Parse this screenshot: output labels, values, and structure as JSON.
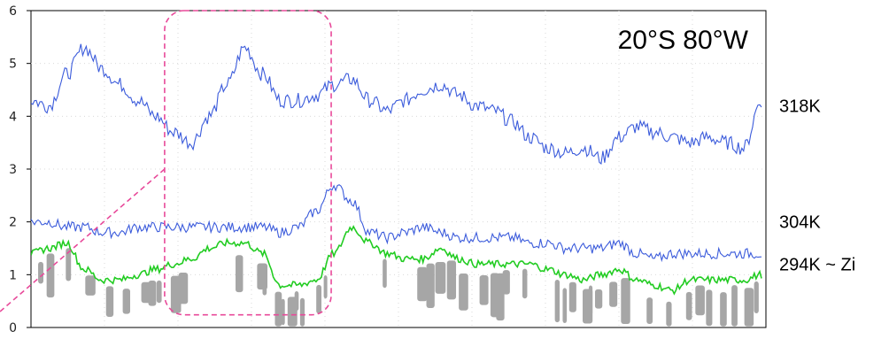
{
  "chart_data": {
    "type": "line",
    "title": "",
    "xlabel": "",
    "ylabel": "",
    "ylim": [
      0,
      6
    ],
    "yticks": [
      0,
      1,
      2,
      3,
      4,
      5,
      6
    ],
    "x": [
      0,
      20,
      40,
      60,
      80,
      100,
      120,
      140,
      160,
      180,
      200,
      220,
      240,
      260,
      280,
      300,
      320,
      340,
      360,
      380,
      400,
      420,
      440,
      460,
      480,
      500,
      520,
      540,
      560,
      580,
      600,
      620,
      640,
      660,
      680,
      700,
      720,
      740,
      760,
      780,
      800,
      820
    ],
    "xlim": [
      0,
      825
    ],
    "grid": true,
    "location_label": "20°S 80°W",
    "colors": {
      "isentrope": "#3b5bdb",
      "inversion": "#22cc22",
      "cloud": "#a6a6a6",
      "highlight": "#e84a9a",
      "grid": "#d9d9d9"
    },
    "series": [
      {
        "name": "318K",
        "color": "#3b5bdb",
        "values": [
          4.3,
          4.2,
          4.8,
          5.3,
          4.9,
          4.6,
          4.3,
          4.0,
          3.7,
          3.5,
          4.0,
          4.6,
          5.3,
          4.8,
          4.3,
          4.3,
          4.4,
          4.6,
          4.7,
          4.3,
          4.1,
          4.3,
          4.5,
          4.6,
          4.4,
          4.2,
          4.1,
          3.9,
          3.6,
          3.4,
          3.3,
          3.4,
          3.2,
          3.6,
          3.8,
          3.7,
          3.6,
          3.5,
          3.6,
          3.5,
          3.4,
          4.3
        ]
      },
      {
        "name": "304K",
        "color": "#3b5bdb",
        "values": [
          2.0,
          2.0,
          1.9,
          1.9,
          1.8,
          1.8,
          1.9,
          1.9,
          1.9,
          1.9,
          1.9,
          1.9,
          1.9,
          1.9,
          1.8,
          1.9,
          2.2,
          2.7,
          2.4,
          1.8,
          1.7,
          1.8,
          1.9,
          1.8,
          1.7,
          1.7,
          1.7,
          1.7,
          1.6,
          1.6,
          1.5,
          1.5,
          1.5,
          1.6,
          1.4,
          1.3,
          1.4,
          1.4,
          1.4,
          1.4,
          1.4,
          1.4
        ]
      },
      {
        "name": "294K ~ Zi",
        "color": "#22cc22",
        "values": [
          1.4,
          1.5,
          1.6,
          1.1,
          0.9,
          0.9,
          1.0,
          1.1,
          1.2,
          1.3,
          1.5,
          1.6,
          1.6,
          1.4,
          0.8,
          0.8,
          0.9,
          1.4,
          1.9,
          1.6,
          1.4,
          1.3,
          1.3,
          1.5,
          1.3,
          1.2,
          1.2,
          1.2,
          1.2,
          1.1,
          1.0,
          0.9,
          1.0,
          1.1,
          0.9,
          0.8,
          0.7,
          0.9,
          0.9,
          0.9,
          0.9,
          1.0
        ]
      }
    ]
  }
}
